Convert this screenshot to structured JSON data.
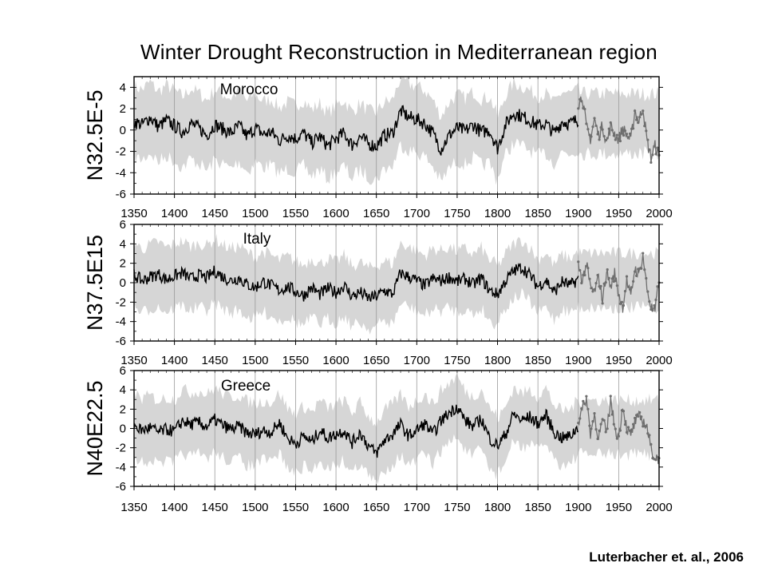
{
  "title": "Winter Drought Reconstruction in Mediterranean region",
  "citation": "Luterbacher et. al., 2006",
  "colors": {
    "band": "#d6d6d6",
    "reconstruction": "#000000",
    "observed": "#6e6e6e",
    "grid": "#9a9a9a"
  },
  "chart_data": [
    {
      "type": "line",
      "panel_label": "Morocco",
      "ylabel": "N32.5E-5",
      "xlim": [
        1350,
        2000
      ],
      "ylim": [
        -6,
        5
      ],
      "yticks": [
        -6,
        -4,
        -2,
        0,
        2,
        4
      ],
      "xticks": [
        1350,
        1400,
        1450,
        1500,
        1550,
        1600,
        1650,
        1700,
        1750,
        1800,
        1850,
        1900,
        1950,
        2000
      ],
      "grid": "vertical",
      "series": [
        {
          "x": [
            1350,
            1360,
            1370,
            1380,
            1390,
            1400,
            1410,
            1420,
            1430,
            1440,
            1450,
            1460,
            1470,
            1480,
            1490,
            1500,
            1510,
            1520,
            1530,
            1540,
            1550,
            1560,
            1570,
            1580,
            1590,
            1600,
            1610,
            1620,
            1630,
            1640,
            1650,
            1660,
            1670,
            1680,
            1690,
            1700,
            1710,
            1720,
            1730,
            1740,
            1750,
            1760,
            1770,
            1780,
            1790,
            1800,
            1810,
            1820,
            1830,
            1840,
            1850,
            1860,
            1870,
            1880,
            1890,
            1900
          ],
          "y": [
            0.8,
            0.5,
            1.2,
            0.3,
            0.9,
            0.4,
            -0.2,
            0.6,
            0.2,
            -0.5,
            0.5,
            0.1,
            -0.3,
            0.4,
            -0.6,
            0.2,
            -0.4,
            -0.2,
            -1.0,
            -0.5,
            -0.8,
            -0.3,
            -1.2,
            -0.6,
            -1.5,
            -0.8,
            -0.3,
            -1.4,
            -0.6,
            -1.3,
            -1.5,
            -0.5,
            -0.3,
            1.8,
            1.2,
            1.0,
            0.6,
            -0.3,
            -1.8,
            -0.5,
            0.2,
            -0.1,
            0.5,
            -0.2,
            0.0,
            -1.7,
            0.5,
            1.6,
            1.3,
            0.9,
            0.4,
            0.6,
            -0.3,
            0.8,
            0.6,
            1.0
          ]
        },
        {
          "x": [
            1900,
            1905,
            1910,
            1915,
            1920,
            1925,
            1930,
            1935,
            1940,
            1945,
            1950,
            1955,
            1960,
            1965,
            1970,
            1975,
            1980,
            1985,
            1990,
            1995,
            2000
          ],
          "y": [
            2.5,
            3.2,
            0.2,
            -0.8,
            1.0,
            -0.5,
            0.4,
            -1.2,
            0.3,
            -0.3,
            -0.9,
            0.2,
            -0.5,
            -1.0,
            1.8,
            0.8,
            2.2,
            -1.0,
            -2.6,
            -1.5,
            -2.5
          ]
        }
      ]
    },
    {
      "type": "line",
      "panel_label": "Italy",
      "ylabel": "N37.5E15",
      "xlim": [
        1350,
        2000
      ],
      "ylim": [
        -6,
        6
      ],
      "yticks": [
        -6,
        -4,
        -2,
        0,
        2,
        4,
        6
      ],
      "xticks": [
        1350,
        1400,
        1450,
        1500,
        1550,
        1600,
        1650,
        1700,
        1750,
        1800,
        1850,
        1900,
        1950,
        2000
      ],
      "grid": "vertical",
      "series": [
        {
          "x": [
            1350,
            1360,
            1370,
            1380,
            1390,
            1400,
            1410,
            1420,
            1430,
            1440,
            1450,
            1460,
            1470,
            1480,
            1490,
            1500,
            1510,
            1520,
            1530,
            1540,
            1550,
            1560,
            1570,
            1580,
            1590,
            1600,
            1610,
            1620,
            1630,
            1640,
            1650,
            1660,
            1670,
            1680,
            1690,
            1700,
            1710,
            1720,
            1730,
            1740,
            1750,
            1760,
            1770,
            1780,
            1790,
            1800,
            1810,
            1820,
            1830,
            1840,
            1850,
            1860,
            1870,
            1880,
            1890,
            1900
          ],
          "y": [
            0.8,
            0.2,
            0.6,
            0.9,
            0.3,
            0.7,
            1.0,
            0.4,
            0.8,
            0.5,
            1.2,
            0.6,
            0.2,
            0.5,
            -0.2,
            -0.5,
            0.1,
            -0.3,
            -0.8,
            -0.4,
            -0.9,
            -1.3,
            -0.5,
            -1.2,
            -0.6,
            -1.0,
            -0.3,
            -1.4,
            -1.0,
            -1.6,
            -1.4,
            -0.8,
            -1.2,
            1.0,
            0.6,
            0.2,
            -0.3,
            0.4,
            0.2,
            0.6,
            0.1,
            0.4,
            -0.2,
            0.5,
            -0.8,
            -1.2,
            0.2,
            1.2,
            1.6,
            0.8,
            -0.4,
            0.3,
            -1.0,
            0.1,
            -0.3,
            0.4
          ]
        },
        {
          "x": [
            1900,
            1905,
            1910,
            1915,
            1920,
            1925,
            1930,
            1935,
            1940,
            1945,
            1950,
            1955,
            1960,
            1965,
            1970,
            1975,
            1980,
            1985,
            1990,
            1995,
            2000
          ],
          "y": [
            1.8,
            0.2,
            2.0,
            -0.5,
            -1.0,
            0.6,
            -1.8,
            1.2,
            -0.5,
            1.0,
            -1.2,
            -2.5,
            0.2,
            -1.5,
            1.5,
            0.8,
            2.8,
            -0.6,
            -2.5,
            -3.0,
            0.5
          ]
        }
      ]
    },
    {
      "type": "line",
      "panel_label": "Greece",
      "ylabel": "N40E22.5",
      "xlim": [
        1350,
        2000
      ],
      "ylim": [
        -6,
        6
      ],
      "yticks": [
        -6,
        -4,
        -2,
        0,
        2,
        4,
        6
      ],
      "xticks": [
        1350,
        1400,
        1450,
        1500,
        1550,
        1600,
        1650,
        1700,
        1750,
        1800,
        1850,
        1900,
        1950,
        2000
      ],
      "grid": "vertical",
      "series": [
        {
          "x": [
            1350,
            1360,
            1370,
            1380,
            1390,
            1400,
            1410,
            1420,
            1430,
            1440,
            1450,
            1460,
            1470,
            1480,
            1490,
            1500,
            1510,
            1520,
            1530,
            1540,
            1550,
            1560,
            1570,
            1580,
            1590,
            1600,
            1610,
            1620,
            1630,
            1640,
            1650,
            1660,
            1670,
            1680,
            1690,
            1700,
            1710,
            1720,
            1730,
            1740,
            1750,
            1760,
            1770,
            1780,
            1790,
            1800,
            1810,
            1820,
            1830,
            1840,
            1850,
            1860,
            1870,
            1880,
            1890,
            1900
          ],
          "y": [
            0.3,
            -0.2,
            0.1,
            -0.4,
            -0.1,
            -0.3,
            0.8,
            0.4,
            0.6,
            0.2,
            0.9,
            0.3,
            -0.1,
            0.2,
            -0.5,
            -0.6,
            -0.2,
            -0.4,
            0.6,
            -1.0,
            -1.6,
            -0.8,
            -1.4,
            -0.2,
            -1.0,
            -0.6,
            -0.2,
            -1.5,
            -0.4,
            -1.8,
            -2.6,
            -1.2,
            -0.6,
            0.4,
            -0.8,
            -0.2,
            0.5,
            -0.6,
            0.8,
            1.6,
            2.3,
            0.8,
            0.2,
            1.0,
            -1.0,
            -1.8,
            -0.6,
            1.5,
            0.8,
            1.2,
            0.5,
            1.4,
            -0.4,
            -1.0,
            -0.8,
            0.2
          ]
        },
        {
          "x": [
            1900,
            1905,
            1910,
            1915,
            1920,
            1925,
            1930,
            1935,
            1940,
            1945,
            1950,
            1955,
            1960,
            1965,
            1970,
            1975,
            1980,
            1985,
            1990,
            1995,
            2000
          ],
          "y": [
            0.6,
            2.0,
            3.2,
            -0.5,
            1.4,
            -1.0,
            0.8,
            -0.5,
            3.0,
            0.2,
            -1.0,
            2.4,
            0.0,
            -0.8,
            0.6,
            1.2,
            0.8,
            0.2,
            -2.2,
            -3.0,
            -3.2
          ]
        }
      ]
    }
  ]
}
